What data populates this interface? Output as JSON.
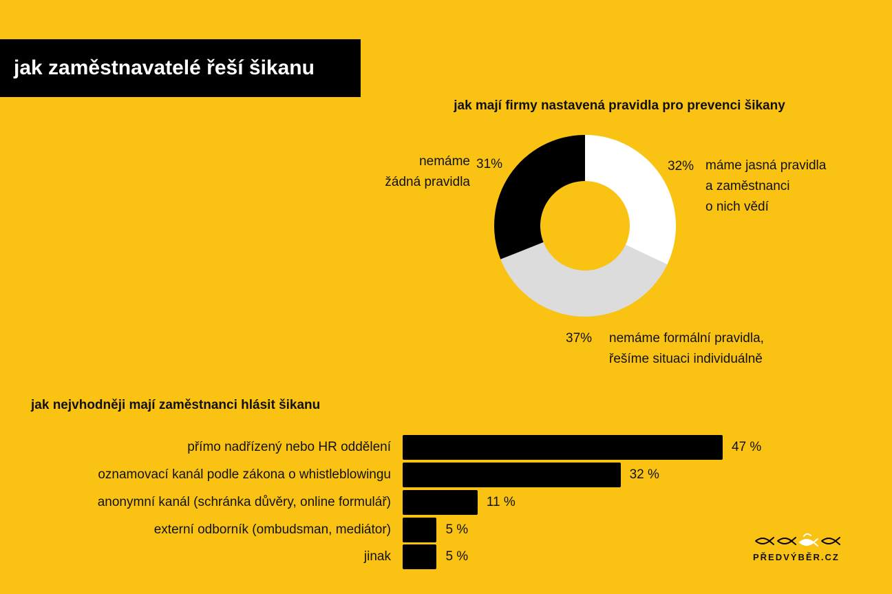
{
  "title": "jak zaměstnavatelé řeší šikanu",
  "colors": {
    "background": "#FAC313",
    "black": "#000000",
    "white": "#FFFFFF",
    "grey": "#DCDCDC"
  },
  "donut": {
    "title": "jak mají firmy nastavená pravidla pro prevenci šikany",
    "labels": {
      "none_pct": "31%",
      "none_line1": "nemáme",
      "none_line2": "žádná pravidla",
      "clear_pct": "32%",
      "clear_line1": "máme jasná pravidla",
      "clear_line2": "a zaměstnanci",
      "clear_line3": "o nich vědí",
      "informal_pct": "37%",
      "informal_line1": "nemáme formální pravidla,",
      "informal_line2": "řešíme situaci individuálně"
    }
  },
  "bars": {
    "title": "jak nejvhodněji mají zaměstnanci hlásit šikanu",
    "rows": [
      {
        "label": "přímo nadřízený nebo HR oddělení",
        "value_text": "47 %"
      },
      {
        "label": "oznamovací kanál podle zákona o whistleblowingu",
        "value_text": "32 %"
      },
      {
        "label": "anonymní kanál (schránka důvěry, online formulář)",
        "value_text": "11 %"
      },
      {
        "label": "externí odborník (ombudsman, mediátor)",
        "value_text": "5 %"
      },
      {
        "label": "jinak",
        "value_text": "5 %"
      }
    ]
  },
  "logo": {
    "text": "PŘEDVÝBĚR.CZ",
    "icon": "fish-icons"
  },
  "chart_data": [
    {
      "type": "pie",
      "title": "jak mají firmy nastavená pravidla pro prevenci šikany",
      "series": [
        {
          "name": "máme jasná pravidla a zaměstnanci o nich vědí",
          "value": 32,
          "color": "#FFFFFF"
        },
        {
          "name": "nemáme formální pravidla, řešíme situaci individuálně",
          "value": 37,
          "color": "#DCDCDC"
        },
        {
          "name": "nemáme žádná pravidla",
          "value": 31,
          "color": "#000000"
        }
      ]
    },
    {
      "type": "bar",
      "orientation": "horizontal",
      "title": "jak nejvhodněji mají zaměstnanci hlásit šikanu",
      "categories": [
        "přímo nadřízený nebo HR oddělení",
        "oznamovací kanál podle zákona o whistleblowingu",
        "anonymní kanál (schránka důvěry, online formulář)",
        "externí odborník (ombudsman, mediátor)",
        "jinak"
      ],
      "values": [
        47,
        32,
        11,
        5,
        5
      ],
      "unit": "%"
    }
  ]
}
